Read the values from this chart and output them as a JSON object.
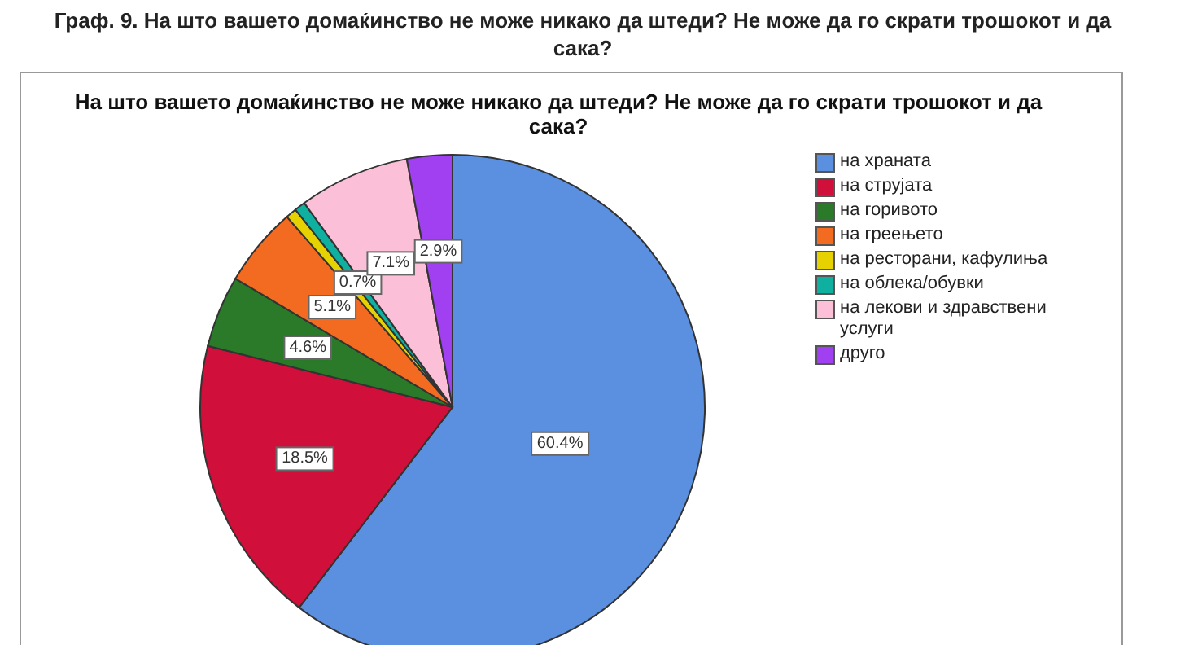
{
  "chart_data": {
    "type": "pie",
    "title": "На што вашето домаќинство  не може никако да штеди? Не може да го скрати трошокот и да сака?",
    "annotations": [
      "Граф. 9. На што вашето домаќинство  не може никако да штеди? Не може да го скрати трошокот и да сака?"
    ],
    "categories": [
      "на храната",
      "на струјата",
      "на горивото",
      "на греењето",
      "на ресторани, кафулиња",
      "на облека/обувки",
      "на лекови и здравствени услуги",
      "друго"
    ],
    "values": [
      60.4,
      18.5,
      4.6,
      5.1,
      0.7,
      0.7,
      7.1,
      2.9
    ],
    "value_labels": [
      "60.4%",
      "18.5%",
      "4.6%",
      "5.1%",
      null,
      "0.7%",
      "7.1%",
      "2.9%"
    ],
    "colors": [
      "#5b8fe0",
      "#d0103a",
      "#2a7a2a",
      "#f26b21",
      "#e6d200",
      "#10b0a0",
      "#fbc0d8",
      "#a040f0"
    ],
    "legend": "right"
  }
}
